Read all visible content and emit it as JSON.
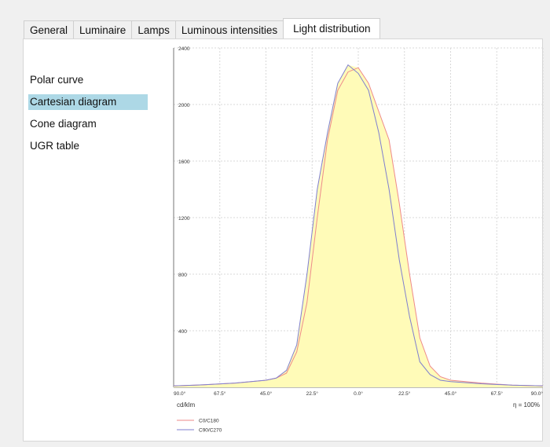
{
  "tabs": [
    "General",
    "Luminaire",
    "Lamps",
    "Luminous intensities",
    "Light distribution"
  ],
  "active_tab": "Light distribution",
  "menu": [
    "Polar curve",
    "Cartesian diagram",
    "Cone diagram",
    "UGR table"
  ],
  "selected_menu": "Cartesian diagram",
  "colors": {
    "c0": "#ee8a8a",
    "c90": "#7f7fcf",
    "fill": "#fffbb8",
    "selected": "#add8e6"
  },
  "chart_data": {
    "type": "line",
    "unit_label": "cd/klm",
    "efficiency_label": "η = 100%",
    "x_ticks": [
      "90.0°",
      "67.5°",
      "45.0°",
      "22.5°",
      "0.0°",
      "22.5°",
      "45.0°",
      "67.5°",
      "90.0°"
    ],
    "y_ticks": [
      "400",
      "800",
      "1200",
      "1600",
      "2000",
      "2400"
    ],
    "xlim": [
      -90,
      90
    ],
    "ylim": [
      0,
      2400
    ],
    "grid": true,
    "legend_position": "bottom-left",
    "x": [
      -90,
      -75,
      -60,
      -45,
      -40,
      -35,
      -30,
      -25,
      -20,
      -15,
      -10,
      -5,
      0,
      5,
      10,
      15,
      20,
      25,
      30,
      35,
      40,
      45,
      60,
      75,
      90
    ],
    "series": [
      {
        "name": "C0/C180",
        "color": "#ee8a8a",
        "values": [
          10,
          18,
          30,
          50,
          65,
          100,
          250,
          600,
          1200,
          1750,
          2100,
          2230,
          2260,
          2150,
          1950,
          1750,
          1300,
          800,
          350,
          150,
          75,
          50,
          30,
          15,
          10
        ]
      },
      {
        "name": "C90/C270",
        "color": "#7f7fcf",
        "values": [
          10,
          18,
          30,
          50,
          65,
          120,
          300,
          800,
          1400,
          1800,
          2150,
          2280,
          2220,
          2100,
          1800,
          1400,
          900,
          500,
          180,
          90,
          50,
          40,
          25,
          15,
          10
        ]
      }
    ]
  }
}
